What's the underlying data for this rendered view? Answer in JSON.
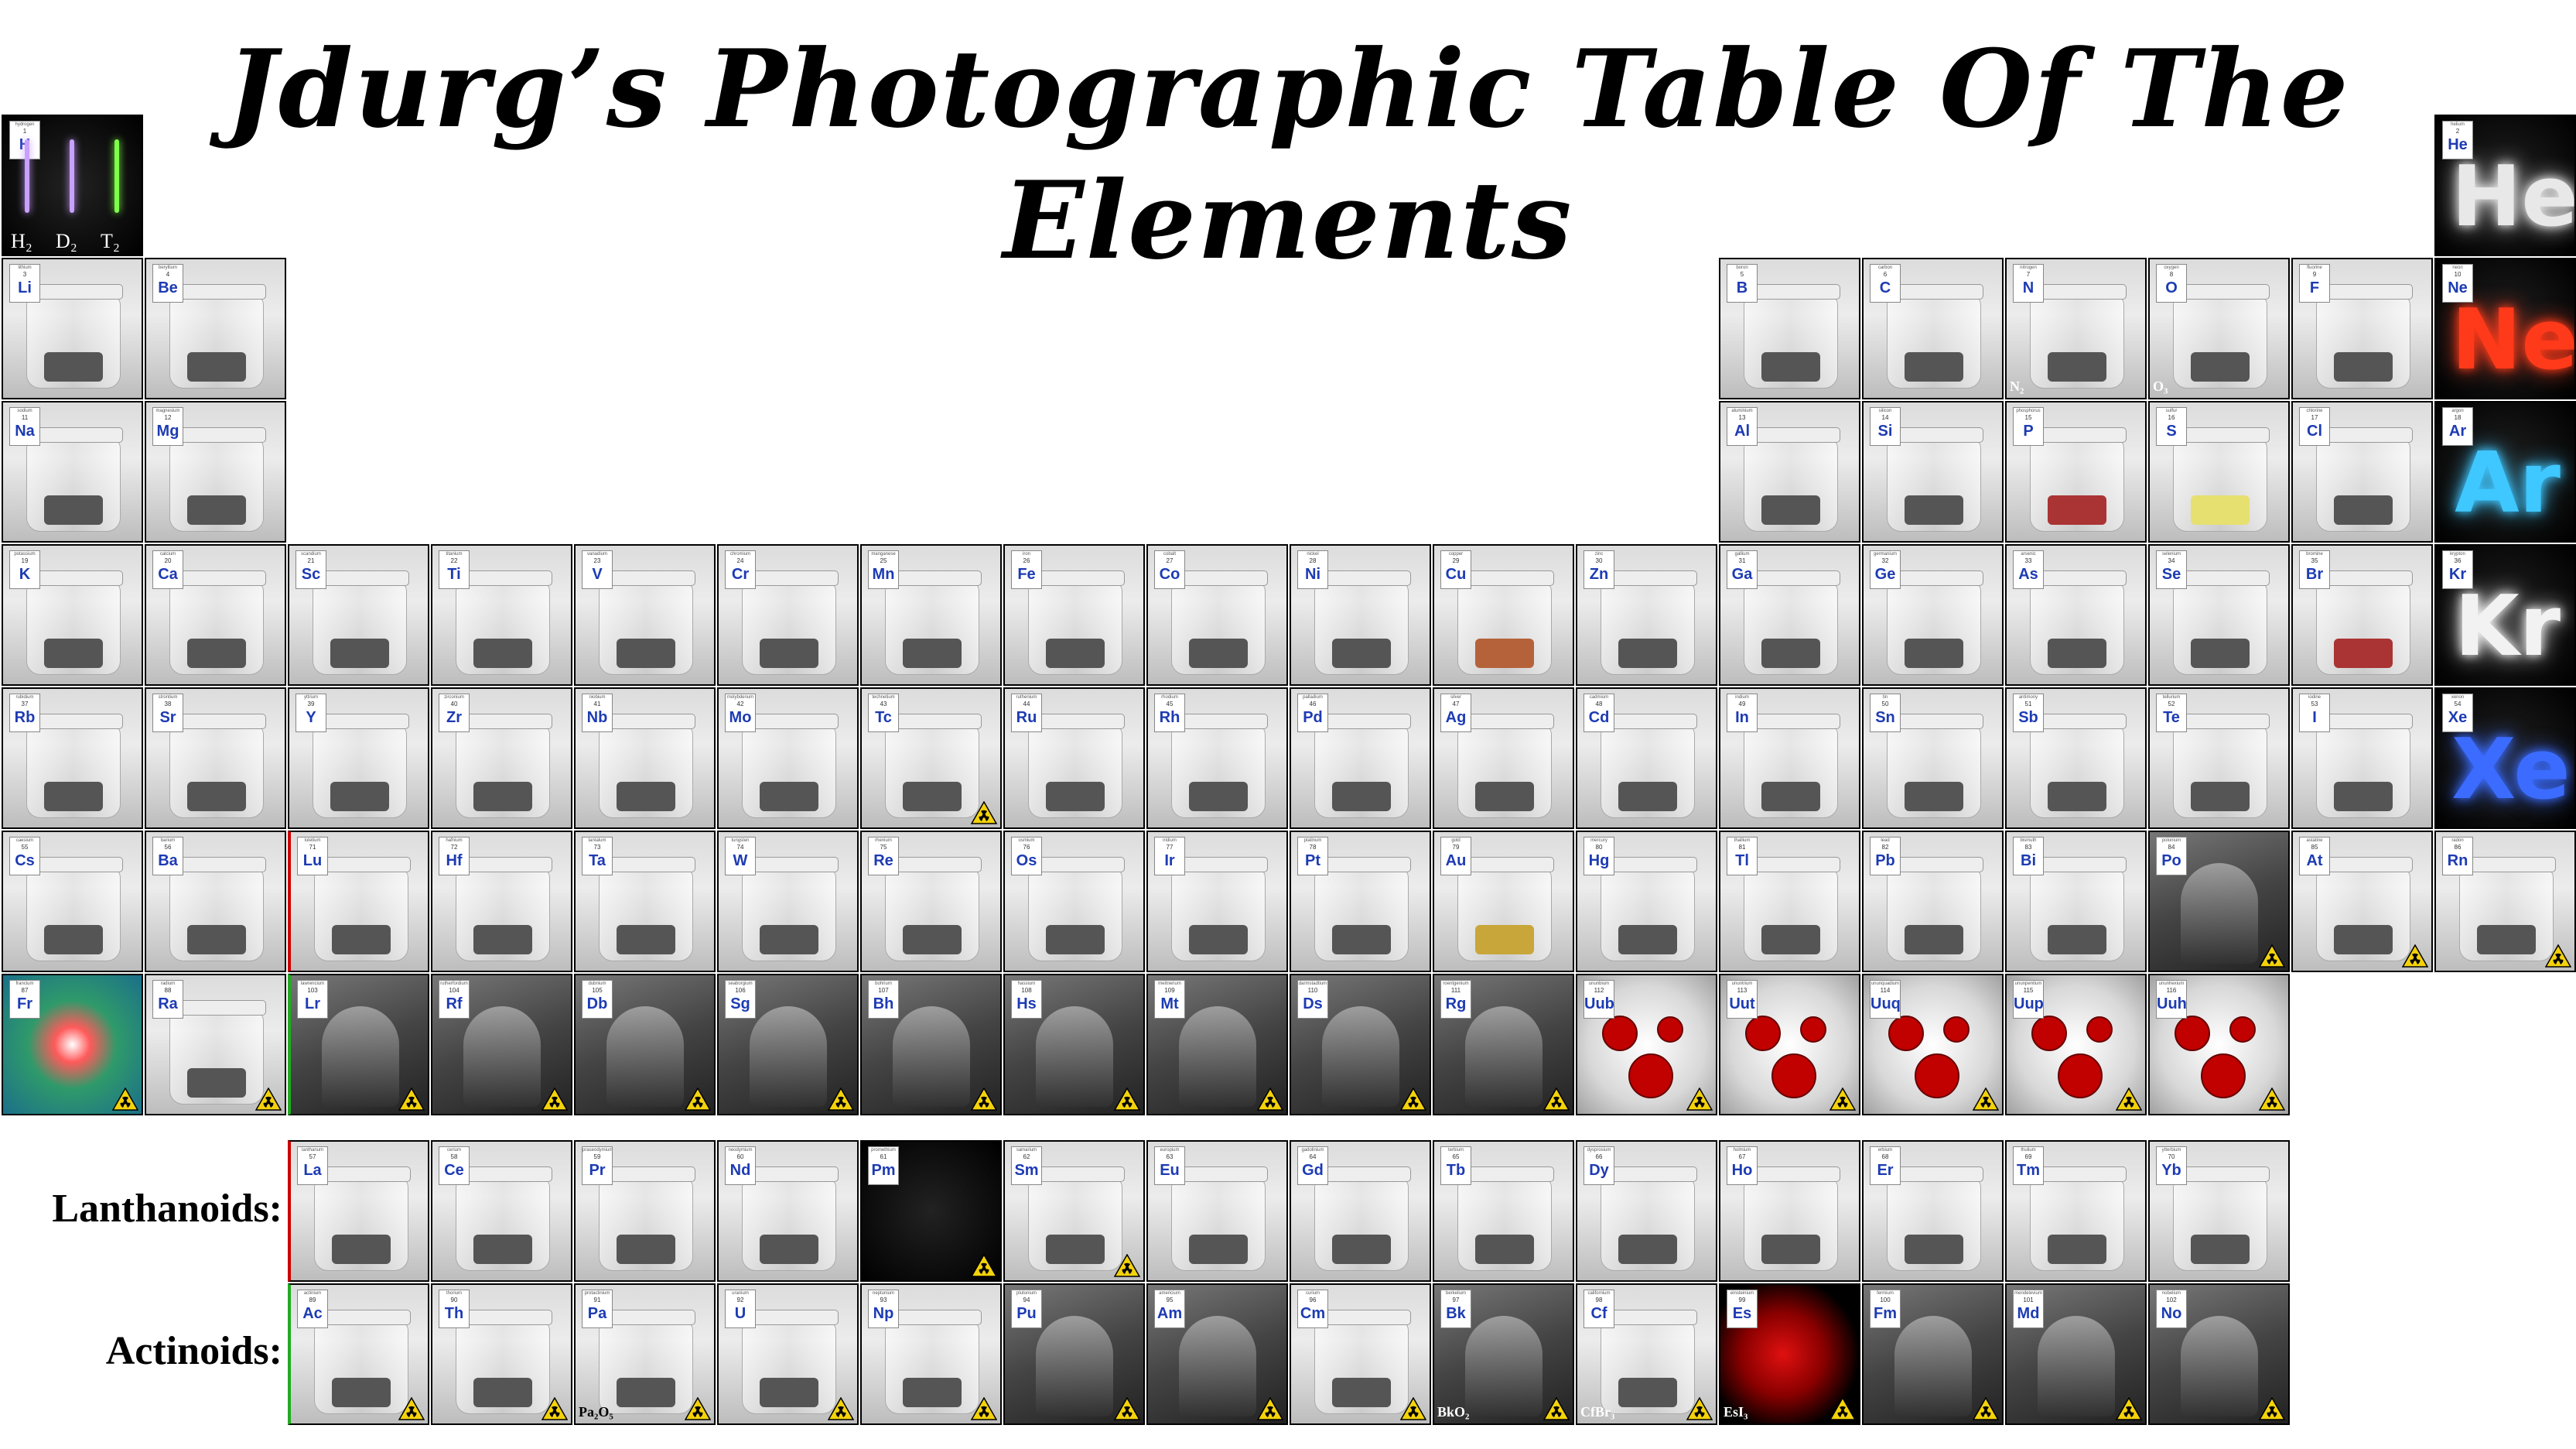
{
  "title": "Jdurg’s Photographic Table Of The Elements",
  "series_labels": {
    "lanthanoids": "Lanthanoids:",
    "actinoids": "Actinoids:"
  },
  "hydrogen_captions": [
    "H₂",
    "D₂",
    "T₂"
  ],
  "colors": {
    "symbol": "#1d3bb3",
    "radioactive": "#f4d20a",
    "neon_ne": "#ff3a1a",
    "neon_ar": "#3fc7ff",
    "neon_xe": "#3b6cff"
  },
  "elements": [
    {
      "sym": "H",
      "num": 1,
      "name": "hydrogen",
      "col": 1,
      "row": 1,
      "style": "dark"
    },
    {
      "sym": "He",
      "num": 2,
      "name": "helium",
      "col": 18,
      "row": 1,
      "style": "neon",
      "glow": "He",
      "glowColor": "#e8e8e8"
    },
    {
      "sym": "Li",
      "num": 3,
      "name": "lithium",
      "col": 1,
      "row": 2
    },
    {
      "sym": "Be",
      "num": 4,
      "name": "beryllium",
      "col": 2,
      "row": 2
    },
    {
      "sym": "B",
      "num": 5,
      "name": "boron",
      "col": 13,
      "row": 2
    },
    {
      "sym": "C",
      "num": 6,
      "name": "carbon",
      "col": 14,
      "row": 2
    },
    {
      "sym": "N",
      "num": 7,
      "name": "nitrogen",
      "col": 15,
      "row": 2,
      "caption": "N₂"
    },
    {
      "sym": "O",
      "num": 8,
      "name": "oxygen",
      "col": 16,
      "row": 2,
      "caption": "O₃"
    },
    {
      "sym": "F",
      "num": 9,
      "name": "fluorine",
      "col": 17,
      "row": 2
    },
    {
      "sym": "Ne",
      "num": 10,
      "name": "neon",
      "col": 18,
      "row": 2,
      "style": "neon",
      "glow": "Ne",
      "glowColor": "#ff3a1a"
    },
    {
      "sym": "Na",
      "num": 11,
      "name": "sodium",
      "col": 1,
      "row": 3
    },
    {
      "sym": "Mg",
      "num": 12,
      "name": "magnesium",
      "col": 2,
      "row": 3
    },
    {
      "sym": "Al",
      "num": 13,
      "name": "aluminium",
      "col": 13,
      "row": 3
    },
    {
      "sym": "Si",
      "num": 14,
      "name": "silicon",
      "col": 14,
      "row": 3
    },
    {
      "sym": "P",
      "num": 15,
      "name": "phosphorus",
      "col": 15,
      "row": 3,
      "sample": "red"
    },
    {
      "sym": "S",
      "num": 16,
      "name": "sulfur",
      "col": 16,
      "row": 3,
      "sample": "yellow"
    },
    {
      "sym": "Cl",
      "num": 17,
      "name": "chlorine",
      "col": 17,
      "row": 3
    },
    {
      "sym": "Ar",
      "num": 18,
      "name": "argon",
      "col": 18,
      "row": 3,
      "style": "neon",
      "glow": "Ar",
      "glowColor": "#3fc7ff"
    },
    {
      "sym": "K",
      "num": 19,
      "name": "potassium",
      "col": 1,
      "row": 4
    },
    {
      "sym": "Ca",
      "num": 20,
      "name": "calcium",
      "col": 2,
      "row": 4
    },
    {
      "sym": "Sc",
      "num": 21,
      "name": "scandium",
      "col": 3,
      "row": 4
    },
    {
      "sym": "Ti",
      "num": 22,
      "name": "titanium",
      "col": 4,
      "row": 4
    },
    {
      "sym": "V",
      "num": 23,
      "name": "vanadium",
      "col": 5,
      "row": 4
    },
    {
      "sym": "Cr",
      "num": 24,
      "name": "chromium",
      "col": 6,
      "row": 4
    },
    {
      "sym": "Mn",
      "num": 25,
      "name": "manganese",
      "col": 7,
      "row": 4
    },
    {
      "sym": "Fe",
      "num": 26,
      "name": "iron",
      "col": 8,
      "row": 4
    },
    {
      "sym": "Co",
      "num": 27,
      "name": "cobalt",
      "col": 9,
      "row": 4
    },
    {
      "sym": "Ni",
      "num": 28,
      "name": "nickel",
      "col": 10,
      "row": 4
    },
    {
      "sym": "Cu",
      "num": 29,
      "name": "copper",
      "col": 11,
      "row": 4,
      "sample": "copper"
    },
    {
      "sym": "Zn",
      "num": 30,
      "name": "zinc",
      "col": 12,
      "row": 4
    },
    {
      "sym": "Ga",
      "num": 31,
      "name": "gallium",
      "col": 13,
      "row": 4
    },
    {
      "sym": "Ge",
      "num": 32,
      "name": "germanium",
      "col": 14,
      "row": 4
    },
    {
      "sym": "As",
      "num": 33,
      "name": "arsenic",
      "col": 15,
      "row": 4
    },
    {
      "sym": "Se",
      "num": 34,
      "name": "selenium",
      "col": 16,
      "row": 4
    },
    {
      "sym": "Br",
      "num": 35,
      "name": "bromine",
      "col": 17,
      "row": 4,
      "sample": "red"
    },
    {
      "sym": "Kr",
      "num": 36,
      "name": "krypton",
      "col": 18,
      "row": 4,
      "style": "neon",
      "glow": "Kr",
      "glowColor": "#f2f2f2"
    },
    {
      "sym": "Rb",
      "num": 37,
      "name": "rubidium",
      "col": 1,
      "row": 5
    },
    {
      "sym": "Sr",
      "num": 38,
      "name": "strontium",
      "col": 2,
      "row": 5
    },
    {
      "sym": "Y",
      "num": 39,
      "name": "yttrium",
      "col": 3,
      "row": 5
    },
    {
      "sym": "Zr",
      "num": 40,
      "name": "zirconium",
      "col": 4,
      "row": 5
    },
    {
      "sym": "Nb",
      "num": 41,
      "name": "niobium",
      "col": 5,
      "row": 5
    },
    {
      "sym": "Mo",
      "num": 42,
      "name": "molybdenum",
      "col": 6,
      "row": 5
    },
    {
      "sym": "Tc",
      "num": 43,
      "name": "technetium",
      "col": 7,
      "row": 5,
      "rad": true
    },
    {
      "sym": "Ru",
      "num": 44,
      "name": "ruthenium",
      "col": 8,
      "row": 5
    },
    {
      "sym": "Rh",
      "num": 45,
      "name": "rhodium",
      "col": 9,
      "row": 5
    },
    {
      "sym": "Pd",
      "num": 46,
      "name": "palladium",
      "col": 10,
      "row": 5
    },
    {
      "sym": "Ag",
      "num": 47,
      "name": "silver",
      "col": 11,
      "row": 5
    },
    {
      "sym": "Cd",
      "num": 48,
      "name": "cadmium",
      "col": 12,
      "row": 5
    },
    {
      "sym": "In",
      "num": 49,
      "name": "indium",
      "col": 13,
      "row": 5
    },
    {
      "sym": "Sn",
      "num": 50,
      "name": "tin",
      "col": 14,
      "row": 5
    },
    {
      "sym": "Sb",
      "num": 51,
      "name": "antimony",
      "col": 15,
      "row": 5
    },
    {
      "sym": "Te",
      "num": 52,
      "name": "tellurium",
      "col": 16,
      "row": 5
    },
    {
      "sym": "I",
      "num": 53,
      "name": "iodine",
      "col": 17,
      "row": 5
    },
    {
      "sym": "Xe",
      "num": 54,
      "name": "xenon",
      "col": 18,
      "row": 5,
      "style": "neon",
      "glow": "Xe",
      "glowColor": "#3b6cff"
    },
    {
      "sym": "Cs",
      "num": 55,
      "name": "caesium",
      "col": 1,
      "row": 6
    },
    {
      "sym": "Ba",
      "num": 56,
      "name": "barium",
      "col": 2,
      "row": 6
    },
    {
      "sym": "Lu",
      "num": 71,
      "name": "lutetium",
      "col": 3,
      "row": 6,
      "edge": "red"
    },
    {
      "sym": "Hf",
      "num": 72,
      "name": "hafnium",
      "col": 4,
      "row": 6
    },
    {
      "sym": "Ta",
      "num": 73,
      "name": "tantalum",
      "col": 5,
      "row": 6
    },
    {
      "sym": "W",
      "num": 74,
      "name": "tungsten",
      "col": 6,
      "row": 6
    },
    {
      "sym": "Re",
      "num": 75,
      "name": "rhenium",
      "col": 7,
      "row": 6
    },
    {
      "sym": "Os",
      "num": 76,
      "name": "osmium",
      "col": 8,
      "row": 6
    },
    {
      "sym": "Ir",
      "num": 77,
      "name": "iridium",
      "col": 9,
      "row": 6
    },
    {
      "sym": "Pt",
      "num": 78,
      "name": "platinum",
      "col": 10,
      "row": 6
    },
    {
      "sym": "Au",
      "num": 79,
      "name": "gold",
      "col": 11,
      "row": 6,
      "sample": "gold"
    },
    {
      "sym": "Hg",
      "num": 80,
      "name": "mercury",
      "col": 12,
      "row": 6
    },
    {
      "sym": "Tl",
      "num": 81,
      "name": "thallium",
      "col": 13,
      "row": 6
    },
    {
      "sym": "Pb",
      "num": 82,
      "name": "lead",
      "col": 14,
      "row": 6
    },
    {
      "sym": "Bi",
      "num": 83,
      "name": "bismuth",
      "col": 15,
      "row": 6
    },
    {
      "sym": "Po",
      "num": 84,
      "name": "polonium",
      "col": 16,
      "row": 6,
      "rad": true,
      "style": "photo"
    },
    {
      "sym": "At",
      "num": 85,
      "name": "astatine",
      "col": 17,
      "row": 6,
      "rad": true
    },
    {
      "sym": "Rn",
      "num": 86,
      "name": "radon",
      "col": 18,
      "row": 6,
      "rad": true
    },
    {
      "sym": "Fr",
      "num": 87,
      "name": "francium",
      "col": 1,
      "row": 7,
      "rad": true,
      "style": "fr"
    },
    {
      "sym": "Ra",
      "num": 88,
      "name": "radium",
      "col": 2,
      "row": 7,
      "rad": true
    },
    {
      "sym": "Lr",
      "num": 103,
      "name": "lawrencium",
      "col": 3,
      "row": 7,
      "rad": true,
      "style": "photo",
      "edge": "green"
    },
    {
      "sym": "Rf",
      "num": 104,
      "name": "rutherfordium",
      "col": 4,
      "row": 7,
      "rad": true,
      "style": "photo"
    },
    {
      "sym": "Db",
      "num": 105,
      "name": "dubnium",
      "col": 5,
      "row": 7,
      "rad": true,
      "style": "photo"
    },
    {
      "sym": "Sg",
      "num": 106,
      "name": "seaborgium",
      "col": 6,
      "row": 7,
      "rad": true,
      "style": "photo"
    },
    {
      "sym": "Bh",
      "num": 107,
      "name": "bohrium",
      "col": 7,
      "row": 7,
      "rad": true,
      "style": "photo"
    },
    {
      "sym": "Hs",
      "num": 108,
      "name": "hassium",
      "col": 8,
      "row": 7,
      "rad": true,
      "style": "photo"
    },
    {
      "sym": "Mt",
      "num": 109,
      "name": "meitnerium",
      "col": 9,
      "row": 7,
      "rad": true,
      "style": "photo"
    },
    {
      "sym": "Ds",
      "num": 110,
      "name": "darmstadtium",
      "col": 10,
      "row": 7,
      "rad": true,
      "style": "photo"
    },
    {
      "sym": "Rg",
      "num": 111,
      "name": "roentgenium",
      "col": 11,
      "row": 7,
      "rad": true,
      "style": "photo"
    },
    {
      "sym": "Uub",
      "num": 112,
      "name": "ununbium",
      "col": 12,
      "row": 7,
      "rad": true,
      "style": "atom"
    },
    {
      "sym": "Uut",
      "num": 113,
      "name": "ununtrium",
      "col": 13,
      "row": 7,
      "rad": true,
      "style": "atom"
    },
    {
      "sym": "Uuq",
      "num": 114,
      "name": "ununquadium",
      "col": 14,
      "row": 7,
      "rad": true,
      "style": "atom"
    },
    {
      "sym": "Uup",
      "num": 115,
      "name": "ununpentium",
      "col": 15,
      "row": 7,
      "rad": true,
      "style": "atom"
    },
    {
      "sym": "Uuh",
      "num": 116,
      "name": "ununhexium",
      "col": 16,
      "row": 7,
      "rad": true,
      "style": "atom"
    },
    {
      "sym": "La",
      "num": 57,
      "name": "lanthanum",
      "col": 3,
      "row": 8,
      "edge": "red"
    },
    {
      "sym": "Ce",
      "num": 58,
      "name": "cerium",
      "col": 4,
      "row": 8
    },
    {
      "sym": "Pr",
      "num": 59,
      "name": "praseodymium",
      "col": 5,
      "row": 8
    },
    {
      "sym": "Nd",
      "num": 60,
      "name": "neodymium",
      "col": 6,
      "row": 8
    },
    {
      "sym": "Pm",
      "num": 61,
      "name": "promethium",
      "col": 7,
      "row": 8,
      "rad": true,
      "style": "dark"
    },
    {
      "sym": "Sm",
      "num": 62,
      "name": "samarium",
      "col": 8,
      "row": 8,
      "rad": true
    },
    {
      "sym": "Eu",
      "num": 63,
      "name": "europium",
      "col": 9,
      "row": 8
    },
    {
      "sym": "Gd",
      "num": 64,
      "name": "gadolinium",
      "col": 10,
      "row": 8
    },
    {
      "sym": "Tb",
      "num": 65,
      "name": "terbium",
      "col": 11,
      "row": 8
    },
    {
      "sym": "Dy",
      "num": 66,
      "name": "dysprosium",
      "col": 12,
      "row": 8
    },
    {
      "sym": "Ho",
      "num": 67,
      "name": "holmium",
      "col": 13,
      "row": 8
    },
    {
      "sym": "Er",
      "num": 68,
      "name": "erbium",
      "col": 14,
      "row": 8
    },
    {
      "sym": "Tm",
      "num": 69,
      "name": "thulium",
      "col": 15,
      "row": 8
    },
    {
      "sym": "Yb",
      "num": 70,
      "name": "ytterbium",
      "col": 16,
      "row": 8
    },
    {
      "sym": "Ac",
      "num": 89,
      "name": "actinium",
      "col": 3,
      "row": 9,
      "rad": true,
      "edge": "green"
    },
    {
      "sym": "Th",
      "num": 90,
      "name": "thorium",
      "col": 4,
      "row": 9,
      "rad": true
    },
    {
      "sym": "Pa",
      "num": 91,
      "name": "protactinium",
      "col": 5,
      "row": 9,
      "rad": true,
      "caption": "Pa₂O₅",
      "captionDark": true
    },
    {
      "sym": "U",
      "num": 92,
      "name": "uranium",
      "col": 6,
      "row": 9,
      "rad": true
    },
    {
      "sym": "Np",
      "num": 93,
      "name": "neptunium",
      "col": 7,
      "row": 9,
      "rad": true
    },
    {
      "sym": "Pu",
      "num": 94,
      "name": "plutonium",
      "col": 8,
      "row": 9,
      "rad": true,
      "style": "photo"
    },
    {
      "sym": "Am",
      "num": 95,
      "name": "americium",
      "col": 9,
      "row": 9,
      "rad": true,
      "style": "photo"
    },
    {
      "sym": "Cm",
      "num": 96,
      "name": "curium",
      "col": 10,
      "row": 9,
      "rad": true
    },
    {
      "sym": "Bk",
      "num": 97,
      "name": "berkelium",
      "col": 11,
      "row": 9,
      "rad": true,
      "style": "photo",
      "caption": "BkO₂"
    },
    {
      "sym": "Cf",
      "num": 98,
      "name": "californium",
      "col": 12,
      "row": 9,
      "rad": true,
      "caption": "CfBr₃"
    },
    {
      "sym": "Es",
      "num": 99,
      "name": "einsteinium",
      "col": 13,
      "row": 9,
      "rad": true,
      "style": "es",
      "caption": "EsI₃"
    },
    {
      "sym": "Fm",
      "num": 100,
      "name": "fermium",
      "col": 14,
      "row": 9,
      "rad": true,
      "style": "photo"
    },
    {
      "sym": "Md",
      "num": 101,
      "name": "mendelevium",
      "col": 15,
      "row": 9,
      "rad": true,
      "style": "photo"
    },
    {
      "sym": "No",
      "num": 102,
      "name": "nobelium",
      "col": 16,
      "row": 9,
      "rad": true,
      "style": "photo"
    }
  ]
}
